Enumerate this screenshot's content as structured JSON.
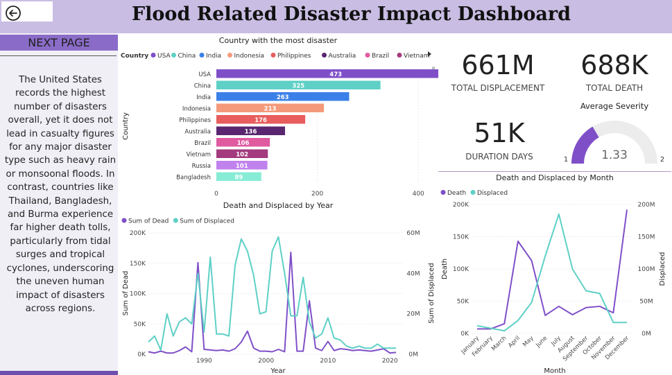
{
  "header": {
    "title": "Flood Related Disaster Impact Dashboard"
  },
  "sidebar": {
    "next_page_label": "NEXT PAGE",
    "description": "The United States records the highest number of disasters overall, yet it does not lead in casualty figures for any major disaster type such as heavy rain or monsoonal floods. In contrast, countries like Thailand, Bangladesh, and Burma experience far higher death tolls, particularly from tidal surges and tropical cyclones, underscoring the uneven human impact of disasters across regions."
  },
  "kpis": {
    "total_displacement": {
      "value": "661M",
      "label": "TOTAL DISPLACEMENT"
    },
    "total_death": {
      "value": "688K",
      "label": "TOTAL DEATH"
    },
    "duration_days": {
      "value": "51K",
      "label": "DURATION DAYS"
    },
    "severity": {
      "title": "Average Severity",
      "value": "1.33",
      "min": "1",
      "max": "2",
      "numeric": 1.33,
      "range": [
        1,
        2
      ]
    }
  },
  "colors": {
    "accent": "#7f4fc8",
    "teal": "#5ed0c6",
    "header_bg": "#c9bde3"
  },
  "chart_data": [
    {
      "type": "bar",
      "title": "Country with the most disaster",
      "ylabel": "Country",
      "legend_title": "Country",
      "legend": [
        {
          "name": "USA",
          "color": "#7f4fc8"
        },
        {
          "name": "China",
          "color": "#5ed0c6"
        },
        {
          "name": "India",
          "color": "#3a80e8"
        },
        {
          "name": "Indonesia",
          "color": "#f49a7a"
        },
        {
          "name": "Philippines",
          "color": "#e85d5d"
        },
        {
          "name": "Australia",
          "color": "#5a2670"
        },
        {
          "name": "Brazil",
          "color": "#e05aa0"
        },
        {
          "name": "Vietnam",
          "color": "#a23a7d"
        }
      ],
      "categories": [
        "USA",
        "China",
        "India",
        "Indonesia",
        "Philippines",
        "Australia",
        "Brazil",
        "Vietnam",
        "Russia",
        "Bangladesh"
      ],
      "values": [
        473,
        325,
        263,
        213,
        176,
        136,
        106,
        102,
        101,
        89
      ],
      "bar_colors": [
        "#7f4fc8",
        "#5ed0c6",
        "#3a80e8",
        "#f49a7a",
        "#e85d5d",
        "#5a2670",
        "#e05aa0",
        "#a23a7d",
        "#c083ee",
        "#86ecd5"
      ],
      "xticks": [
        "0",
        "200",
        "400"
      ],
      "xlim": [
        0,
        500
      ]
    },
    {
      "type": "line",
      "title": "Death and Displaced by Year",
      "xlabel": "Year",
      "ylabel": "Sum of Dead",
      "y2label": "Sum of Displaced",
      "series": [
        {
          "name": "Sum of Dead",
          "color": "#7f4fc8",
          "axis": "left",
          "values": [
            4000,
            2000,
            5000,
            2000,
            2000,
            6000,
            12000,
            4000,
            151000,
            8000,
            7000,
            6000,
            7000,
            5000,
            9000,
            20000,
            38000,
            10000,
            5000,
            5000,
            4000,
            8000,
            4000,
            168000,
            5000,
            5000,
            88000,
            10000,
            6000,
            21000,
            6000,
            9000,
            8000,
            6000,
            7000,
            6000,
            5000,
            7000,
            9000,
            2000,
            3000
          ]
        },
        {
          "name": "Sum of Displaced",
          "color": "#5ed0c6",
          "axis": "right",
          "values": [
            6000000,
            9000000,
            2000000,
            20000000,
            9000000,
            16000000,
            18000000,
            15000000,
            40000000,
            11000000,
            48000000,
            10000000,
            10000000,
            9000000,
            44000000,
            57000000,
            51000000,
            39000000,
            20000000,
            21000000,
            51000000,
            58000000,
            40000000,
            19000000,
            19000000,
            38000000,
            16000000,
            8000000,
            10000000,
            18000000,
            8000000,
            7000000,
            4000000,
            3000000,
            4000000,
            3000000,
            3000000,
            5000000,
            3000000,
            3000000,
            3000000
          ]
        }
      ],
      "x": [
        1981,
        1982,
        1983,
        1984,
        1985,
        1986,
        1987,
        1988,
        1989,
        1990,
        1991,
        1992,
        1993,
        1994,
        1995,
        1996,
        1997,
        1998,
        1999,
        2000,
        2001,
        2002,
        2003,
        2004,
        2005,
        2006,
        2007,
        2008,
        2009,
        2010,
        2011,
        2012,
        2013,
        2014,
        2015,
        2016,
        2017,
        2018,
        2019,
        2020,
        2021
      ],
      "xlim": [
        1981,
        2022
      ],
      "xticks": [
        "1990",
        "2000",
        "2010",
        "2020"
      ],
      "ylim": [
        0,
        200000
      ],
      "yticks": [
        "0K",
        "50K",
        "100K",
        "150K",
        "200K"
      ],
      "y2lim": [
        0,
        60000000
      ],
      "y2ticks": [
        "0M",
        "20M",
        "40M",
        "60M"
      ]
    },
    {
      "type": "line",
      "title": "Death and Displaced by Month",
      "xlabel": "Month",
      "ylabel": "Death",
      "y2label": "Displaced",
      "categories": [
        "January",
        "February",
        "March",
        "April",
        "May",
        "June",
        "July",
        "August",
        "September",
        "October",
        "November",
        "December"
      ],
      "series": [
        {
          "name": "Death",
          "color": "#7f4fc8",
          "axis": "left",
          "values": [
            7000,
            7000,
            15000,
            143000,
            113000,
            28000,
            42000,
            29000,
            40000,
            42000,
            32000,
            192000
          ]
        },
        {
          "name": "Displaced",
          "color": "#5ed0c6",
          "axis": "right",
          "values": [
            12000000,
            8000000,
            4000000,
            20000000,
            48000000,
            120000000,
            185000000,
            100000000,
            66000000,
            62000000,
            17000000,
            17000000
          ]
        }
      ],
      "ylim": [
        0,
        200000
      ],
      "yticks": [
        "0K",
        "50K",
        "100K",
        "150K",
        "200K"
      ],
      "y2lim": [
        0,
        200000000
      ],
      "y2ticks": [
        "0M",
        "50M",
        "100M",
        "150M",
        "200M"
      ]
    }
  ]
}
